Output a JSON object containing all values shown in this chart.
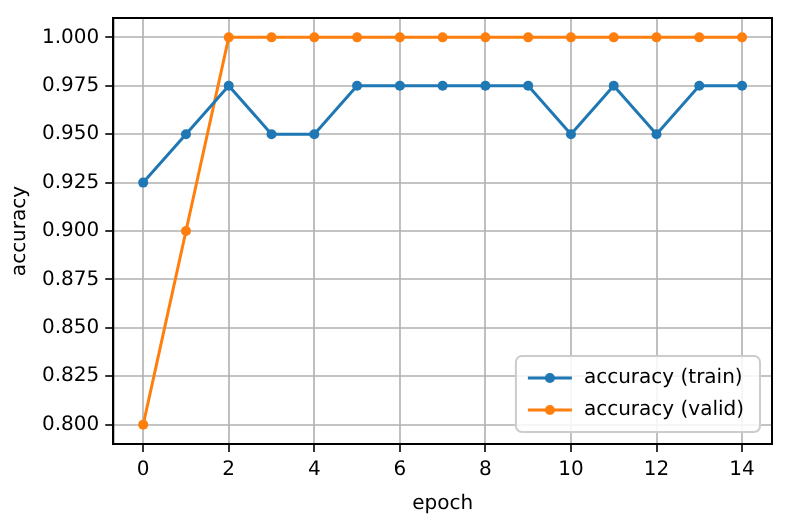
{
  "chart_data": {
    "type": "line",
    "xlabel": "epoch",
    "ylabel": "accuracy",
    "x": [
      0,
      1,
      2,
      3,
      4,
      5,
      6,
      7,
      8,
      9,
      10,
      11,
      12,
      13,
      14
    ],
    "series": [
      {
        "name": "accuracy (train)",
        "color": "#1f77b4",
        "values": [
          0.925,
          0.95,
          0.975,
          0.95,
          0.95,
          0.975,
          0.975,
          0.975,
          0.975,
          0.975,
          0.95,
          0.975,
          0.95,
          0.975,
          0.975
        ]
      },
      {
        "name": "accuracy (valid)",
        "color": "#ff7f0e",
        "values": [
          0.8,
          0.9,
          1.0,
          1.0,
          1.0,
          1.0,
          1.0,
          1.0,
          1.0,
          1.0,
          1.0,
          1.0,
          1.0,
          1.0,
          1.0
        ]
      }
    ],
    "xlim": [
      -0.7,
      14.7
    ],
    "xticks": [
      0,
      2,
      4,
      6,
      8,
      10,
      12,
      14
    ],
    "ylim": [
      0.79,
      1.01
    ],
    "yticks": [
      {
        "value": 0.8,
        "label": "0.800"
      },
      {
        "value": 0.825,
        "label": "0.825"
      },
      {
        "value": 0.85,
        "label": "0.850"
      },
      {
        "value": 0.875,
        "label": "0.875"
      },
      {
        "value": 0.9,
        "label": "0.900"
      },
      {
        "value": 0.925,
        "label": "0.925"
      },
      {
        "value": 0.95,
        "label": "0.950"
      },
      {
        "value": 0.975,
        "label": "0.975"
      },
      {
        "value": 1.0,
        "label": "1.000"
      }
    ],
    "grid": true,
    "legend": "bottom right",
    "marker": "circle",
    "line_style": "solid"
  }
}
